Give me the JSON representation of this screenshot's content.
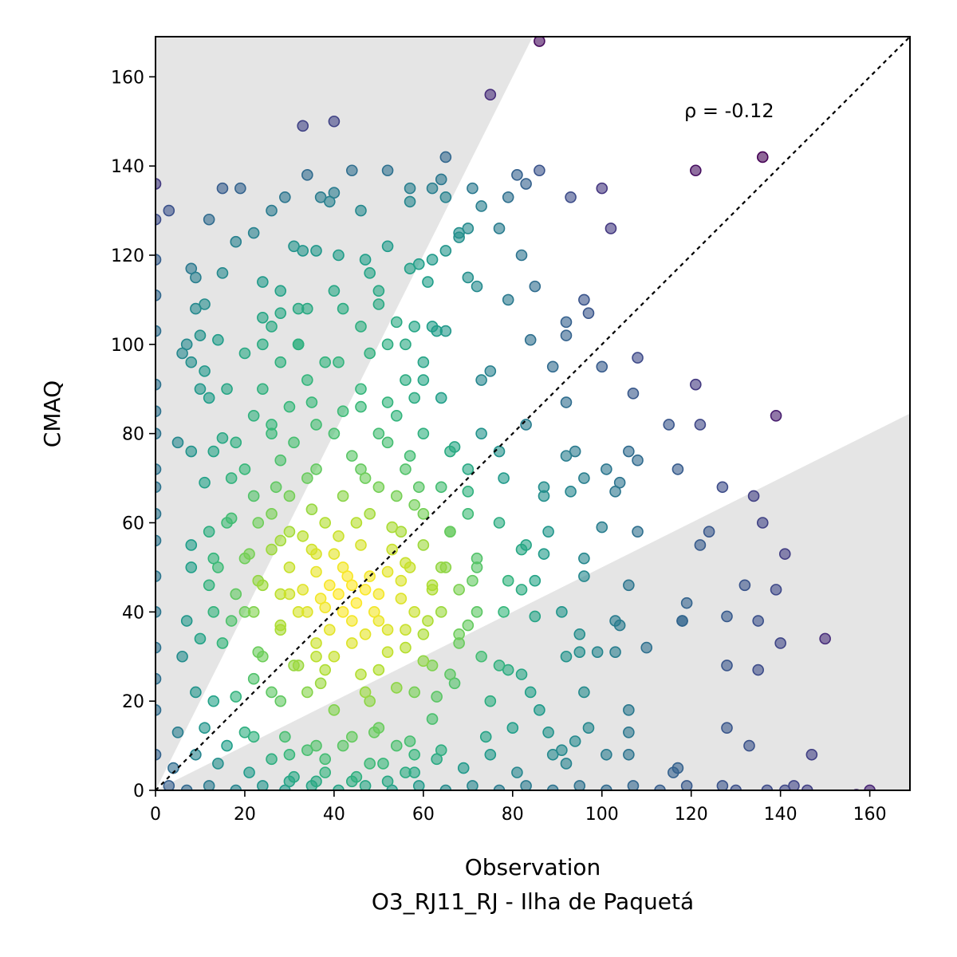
{
  "chart_data": {
    "type": "scatter",
    "xlabel": "Observation",
    "subtitle": "O3_RJ11_RJ - Ilha de Paquetá",
    "ylabel": "CMAQ",
    "annotation": "ρ = -0.12",
    "xlim": [
      0,
      169
    ],
    "ylim": [
      0,
      169
    ],
    "xticks": [
      "0",
      "20",
      "40",
      "60",
      "80",
      "100",
      "120",
      "140",
      "160"
    ],
    "yticks": [
      "0",
      "20",
      "40",
      "60",
      "80",
      "100",
      "120",
      "140",
      "160"
    ],
    "grid": false,
    "legend": "none",
    "reference_line": "1:1 dashed",
    "shaded_regions": "outside factor-of-2 band (y > 2x and y < 0.5x)",
    "colormap": "viridis (point density)",
    "colors": {
      "low_density": "#440154",
      "mid_density": "#21918c",
      "high_density": "#fde725",
      "shade": "#e5e5e5"
    },
    "points": [
      [
        86,
        168
      ],
      [
        75,
        156
      ],
      [
        33,
        149
      ],
      [
        40,
        150
      ],
      [
        136,
        142
      ],
      [
        121,
        139
      ],
      [
        65,
        142
      ],
      [
        52,
        139
      ],
      [
        34,
        138
      ],
      [
        44,
        139
      ],
      [
        81,
        138
      ],
      [
        86,
        139
      ],
      [
        64,
        137
      ],
      [
        0,
        136
      ],
      [
        15,
        135
      ],
      [
        19,
        135
      ],
      [
        37,
        133
      ],
      [
        40,
        134
      ],
      [
        57,
        135
      ],
      [
        62,
        135
      ],
      [
        65,
        133
      ],
      [
        71,
        135
      ],
      [
        93,
        133
      ],
      [
        100,
        135
      ],
      [
        3,
        130
      ],
      [
        0,
        128
      ],
      [
        12,
        128
      ],
      [
        26,
        130
      ],
      [
        29,
        133
      ],
      [
        39,
        132
      ],
      [
        46,
        130
      ],
      [
        57,
        132
      ],
      [
        73,
        131
      ],
      [
        79,
        133
      ],
      [
        83,
        136
      ],
      [
        68,
        125
      ],
      [
        70,
        126
      ],
      [
        77,
        126
      ],
      [
        102,
        126
      ],
      [
        22,
        125
      ],
      [
        18,
        123
      ],
      [
        52,
        122
      ],
      [
        36,
        121
      ],
      [
        0,
        119
      ],
      [
        8,
        117
      ],
      [
        9,
        115
      ],
      [
        15,
        116
      ],
      [
        31,
        122
      ],
      [
        33,
        121
      ],
      [
        41,
        120
      ],
      [
        47,
        119
      ],
      [
        62,
        119
      ],
      [
        65,
        121
      ],
      [
        68,
        124
      ],
      [
        70,
        115
      ],
      [
        82,
        120
      ],
      [
        57,
        117
      ],
      [
        59,
        118
      ],
      [
        85,
        113
      ],
      [
        61,
        114
      ],
      [
        72,
        113
      ],
      [
        79,
        110
      ],
      [
        96,
        110
      ],
      [
        97,
        107
      ],
      [
        0,
        111
      ],
      [
        9,
        108
      ],
      [
        11,
        109
      ],
      [
        24,
        114
      ],
      [
        28,
        107
      ],
      [
        32,
        108
      ],
      [
        50,
        109
      ],
      [
        54,
        105
      ],
      [
        63,
        103
      ],
      [
        65,
        103
      ],
      [
        92,
        105
      ],
      [
        92,
        102
      ],
      [
        0,
        103
      ],
      [
        7,
        100
      ],
      [
        10,
        102
      ],
      [
        14,
        101
      ],
      [
        24,
        100
      ],
      [
        32,
        100
      ],
      [
        41,
        96
      ],
      [
        48,
        98
      ],
      [
        56,
        100
      ],
      [
        84,
        101
      ],
      [
        100,
        95
      ],
      [
        108,
        97
      ],
      [
        6,
        98
      ],
      [
        8,
        96
      ],
      [
        11,
        94
      ],
      [
        0,
        91
      ],
      [
        10,
        90
      ],
      [
        12,
        88
      ],
      [
        35,
        87
      ],
      [
        46,
        86
      ],
      [
        52,
        87
      ],
      [
        58,
        88
      ],
      [
        60,
        92
      ],
      [
        73,
        92
      ],
      [
        75,
        94
      ],
      [
        89,
        95
      ],
      [
        92,
        87
      ],
      [
        107,
        89
      ],
      [
        121,
        91
      ],
      [
        0,
        85
      ],
      [
        0,
        80
      ],
      [
        5,
        78
      ],
      [
        8,
        76
      ],
      [
        13,
        76
      ],
      [
        15,
        79
      ],
      [
        26,
        82
      ],
      [
        31,
        78
      ],
      [
        50,
        80
      ],
      [
        57,
        75
      ],
      [
        67,
        77
      ],
      [
        73,
        80
      ],
      [
        77,
        76
      ],
      [
        83,
        82
      ],
      [
        92,
        75
      ],
      [
        94,
        76
      ],
      [
        106,
        76
      ],
      [
        108,
        74
      ],
      [
        115,
        82
      ],
      [
        122,
        82
      ],
      [
        139,
        84
      ],
      [
        0,
        72
      ],
      [
        0,
        68
      ],
      [
        11,
        69
      ],
      [
        17,
        70
      ],
      [
        27,
        68
      ],
      [
        36,
        72
      ],
      [
        47,
        70
      ],
      [
        59,
        68
      ],
      [
        70,
        67
      ],
      [
        78,
        70
      ],
      [
        87,
        68
      ],
      [
        96,
        70
      ],
      [
        101,
        72
      ],
      [
        103,
        67
      ],
      [
        104,
        69
      ],
      [
        117,
        72
      ],
      [
        0,
        62
      ],
      [
        12,
        58
      ],
      [
        17,
        61
      ],
      [
        23,
        60
      ],
      [
        28,
        56
      ],
      [
        33,
        57
      ],
      [
        53,
        59
      ],
      [
        60,
        62
      ],
      [
        66,
        58
      ],
      [
        77,
        60
      ],
      [
        82,
        54
      ],
      [
        87,
        66
      ],
      [
        88,
        58
      ],
      [
        93,
        67
      ],
      [
        100,
        59
      ],
      [
        108,
        58
      ],
      [
        0,
        56
      ],
      [
        8,
        55
      ],
      [
        13,
        52
      ],
      [
        21,
        53
      ],
      [
        36,
        53
      ],
      [
        56,
        51
      ],
      [
        65,
        50
      ],
      [
        72,
        50
      ],
      [
        83,
        55
      ],
      [
        87,
        53
      ],
      [
        96,
        52
      ],
      [
        122,
        55
      ],
      [
        124,
        58
      ],
      [
        127,
        68
      ],
      [
        134,
        66
      ],
      [
        136,
        60
      ],
      [
        141,
        53
      ],
      [
        0,
        48
      ],
      [
        8,
        50
      ],
      [
        12,
        46
      ],
      [
        23,
        47
      ],
      [
        30,
        44
      ],
      [
        55,
        47
      ],
      [
        62,
        46
      ],
      [
        71,
        47
      ],
      [
        79,
        47
      ],
      [
        82,
        45
      ],
      [
        85,
        47
      ],
      [
        96,
        48
      ],
      [
        106,
        46
      ],
      [
        119,
        42
      ],
      [
        132,
        46
      ],
      [
        139,
        45
      ],
      [
        0,
        40
      ],
      [
        7,
        38
      ],
      [
        13,
        40
      ],
      [
        17,
        38
      ],
      [
        20,
        40
      ],
      [
        28,
        37
      ],
      [
        34,
        40
      ],
      [
        50,
        38
      ],
      [
        56,
        36
      ],
      [
        61,
        38
      ],
      [
        70,
        37
      ],
      [
        78,
        40
      ],
      [
        85,
        39
      ],
      [
        91,
        40
      ],
      [
        95,
        35
      ],
      [
        103,
        38
      ],
      [
        104,
        37
      ],
      [
        118,
        38
      ],
      [
        128,
        39
      ],
      [
        135,
        38
      ],
      [
        140,
        33
      ],
      [
        150,
        34
      ],
      [
        0,
        32
      ],
      [
        6,
        30
      ],
      [
        10,
        34
      ],
      [
        15,
        33
      ],
      [
        23,
        31
      ],
      [
        31,
        28
      ],
      [
        36,
        30
      ],
      [
        52,
        31
      ],
      [
        60,
        29
      ],
      [
        68,
        33
      ],
      [
        73,
        30
      ],
      [
        77,
        28
      ],
      [
        79,
        27
      ],
      [
        82,
        26
      ],
      [
        92,
        30
      ],
      [
        95,
        31
      ],
      [
        99,
        31
      ],
      [
        103,
        31
      ],
      [
        110,
        32
      ],
      [
        118,
        38
      ],
      [
        128,
        28
      ],
      [
        135,
        27
      ],
      [
        0,
        25
      ],
      [
        9,
        22
      ],
      [
        13,
        20
      ],
      [
        18,
        21
      ],
      [
        22,
        25
      ],
      [
        26,
        22
      ],
      [
        37,
        24
      ],
      [
        47,
        22
      ],
      [
        54,
        23
      ],
      [
        63,
        21
      ],
      [
        67,
        24
      ],
      [
        75,
        20
      ],
      [
        84,
        22
      ],
      [
        86,
        18
      ],
      [
        96,
        22
      ],
      [
        106,
        18
      ],
      [
        128,
        14
      ],
      [
        0,
        18
      ],
      [
        5,
        13
      ],
      [
        11,
        14
      ],
      [
        16,
        10
      ],
      [
        20,
        13
      ],
      [
        29,
        12
      ],
      [
        34,
        9
      ],
      [
        42,
        10
      ],
      [
        49,
        13
      ],
      [
        57,
        11
      ],
      [
        64,
        9
      ],
      [
        74,
        12
      ],
      [
        80,
        14
      ],
      [
        88,
        13
      ],
      [
        91,
        9
      ],
      [
        94,
        11
      ],
      [
        97,
        14
      ],
      [
        106,
        13
      ],
      [
        133,
        10
      ],
      [
        147,
        8
      ],
      [
        0,
        8
      ],
      [
        4,
        5
      ],
      [
        9,
        8
      ],
      [
        14,
        6
      ],
      [
        21,
        4
      ],
      [
        26,
        7
      ],
      [
        31,
        3
      ],
      [
        38,
        7
      ],
      [
        45,
        3
      ],
      [
        51,
        6
      ],
      [
        58,
        4
      ],
      [
        63,
        7
      ],
      [
        69,
        5
      ],
      [
        75,
        8
      ],
      [
        81,
        4
      ],
      [
        89,
        8
      ],
      [
        92,
        6
      ],
      [
        101,
        8
      ],
      [
        106,
        8
      ],
      [
        116,
        4
      ],
      [
        117,
        5
      ],
      [
        3,
        1
      ],
      [
        7,
        0
      ],
      [
        12,
        1
      ],
      [
        18,
        0
      ],
      [
        24,
        1
      ],
      [
        29,
        0
      ],
      [
        35,
        1
      ],
      [
        41,
        0
      ],
      [
        47,
        1
      ],
      [
        53,
        0
      ],
      [
        59,
        1
      ],
      [
        65,
        0
      ],
      [
        71,
        1
      ],
      [
        77,
        0
      ],
      [
        83,
        1
      ],
      [
        89,
        0
      ],
      [
        95,
        1
      ],
      [
        101,
        0
      ],
      [
        107,
        1
      ],
      [
        113,
        0
      ],
      [
        119,
        1
      ],
      [
        127,
        1
      ],
      [
        130,
        0
      ],
      [
        137,
        0
      ],
      [
        141,
        0
      ],
      [
        143,
        1
      ],
      [
        146,
        0
      ],
      [
        160,
        0
      ],
      [
        157,
        -1
      ],
      [
        43,
        48
      ],
      [
        41,
        44
      ],
      [
        45,
        42
      ],
      [
        39,
        46
      ],
      [
        47,
        45
      ],
      [
        42,
        50
      ],
      [
        44,
        38
      ],
      [
        38,
        41
      ],
      [
        48,
        48
      ],
      [
        40,
        53
      ],
      [
        46,
        55
      ],
      [
        36,
        49
      ],
      [
        50,
        44
      ],
      [
        42,
        40
      ],
      [
        37,
        43
      ],
      [
        44,
        46
      ],
      [
        49,
        40
      ],
      [
        41,
        57
      ],
      [
        35,
        54
      ],
      [
        52,
        49
      ],
      [
        39,
        36
      ],
      [
        47,
        35
      ],
      [
        33,
        45
      ],
      [
        53,
        54
      ],
      [
        45,
        60
      ],
      [
        38,
        60
      ],
      [
        30,
        50
      ],
      [
        55,
        43
      ],
      [
        44,
        33
      ],
      [
        36,
        33
      ],
      [
        52,
        36
      ],
      [
        32,
        40
      ],
      [
        57,
        50
      ],
      [
        48,
        62
      ],
      [
        35,
        63
      ],
      [
        28,
        44
      ],
      [
        58,
        40
      ],
      [
        42,
        66
      ],
      [
        50,
        68
      ],
      [
        30,
        58
      ],
      [
        40,
        30
      ],
      [
        55,
        58
      ],
      [
        28,
        36
      ],
      [
        56,
        32
      ],
      [
        34,
        70
      ],
      [
        46,
        72
      ],
      [
        26,
        54
      ],
      [
        60,
        55
      ],
      [
        38,
        27
      ],
      [
        50,
        27
      ],
      [
        62,
        45
      ],
      [
        24,
        46
      ],
      [
        44,
        75
      ],
      [
        54,
        66
      ],
      [
        32,
        28
      ],
      [
        60,
        35
      ],
      [
        30,
        66
      ],
      [
        22,
        40
      ],
      [
        64,
        50
      ],
      [
        40,
        80
      ],
      [
        52,
        78
      ],
      [
        26,
        62
      ],
      [
        58,
        64
      ],
      [
        46,
        26
      ],
      [
        34,
        22
      ],
      [
        64,
        40
      ],
      [
        20,
        52
      ],
      [
        42,
        85
      ],
      [
        56,
        72
      ],
      [
        28,
        74
      ],
      [
        62,
        28
      ],
      [
        36,
        82
      ],
      [
        48,
        20
      ],
      [
        66,
        58
      ],
      [
        24,
        30
      ],
      [
        30,
        86
      ],
      [
        54,
        84
      ],
      [
        40,
        18
      ],
      [
        58,
        22
      ],
      [
        22,
        66
      ],
      [
        68,
        45
      ],
      [
        46,
        90
      ],
      [
        34,
        92
      ],
      [
        60,
        80
      ],
      [
        26,
        80
      ],
      [
        50,
        14
      ],
      [
        18,
        44
      ],
      [
        64,
        68
      ],
      [
        38,
        96
      ],
      [
        28,
        20
      ],
      [
        56,
        92
      ],
      [
        44,
        12
      ],
      [
        68,
        35
      ],
      [
        20,
        72
      ],
      [
        32,
        100
      ],
      [
        52,
        100
      ],
      [
        62,
        16
      ],
      [
        24,
        90
      ],
      [
        36,
        10
      ],
      [
        60,
        96
      ],
      [
        46,
        104
      ],
      [
        16,
        60
      ],
      [
        70,
        62
      ],
      [
        28,
        96
      ],
      [
        54,
        10
      ],
      [
        42,
        108
      ],
      [
        22,
        84
      ],
      [
        66,
        26
      ],
      [
        30,
        8
      ],
      [
        58,
        104
      ],
      [
        38,
        4
      ],
      [
        48,
        6
      ],
      [
        20,
        98
      ],
      [
        64,
        88
      ],
      [
        72,
        52
      ],
      [
        26,
        104
      ],
      [
        34,
        108
      ],
      [
        18,
        78
      ],
      [
        66,
        76
      ],
      [
        44,
        2
      ],
      [
        52,
        2
      ],
      [
        56,
        4
      ],
      [
        30,
        2
      ],
      [
        24,
        106
      ],
      [
        40,
        112
      ],
      [
        62,
        104
      ],
      [
        16,
        90
      ],
      [
        70,
        72
      ],
      [
        36,
        2
      ],
      [
        50,
        112
      ],
      [
        58,
        8
      ],
      [
        22,
        12
      ],
      [
        14,
        50
      ],
      [
        72,
        40
      ],
      [
        28,
        112
      ],
      [
        48,
        116
      ]
    ]
  }
}
